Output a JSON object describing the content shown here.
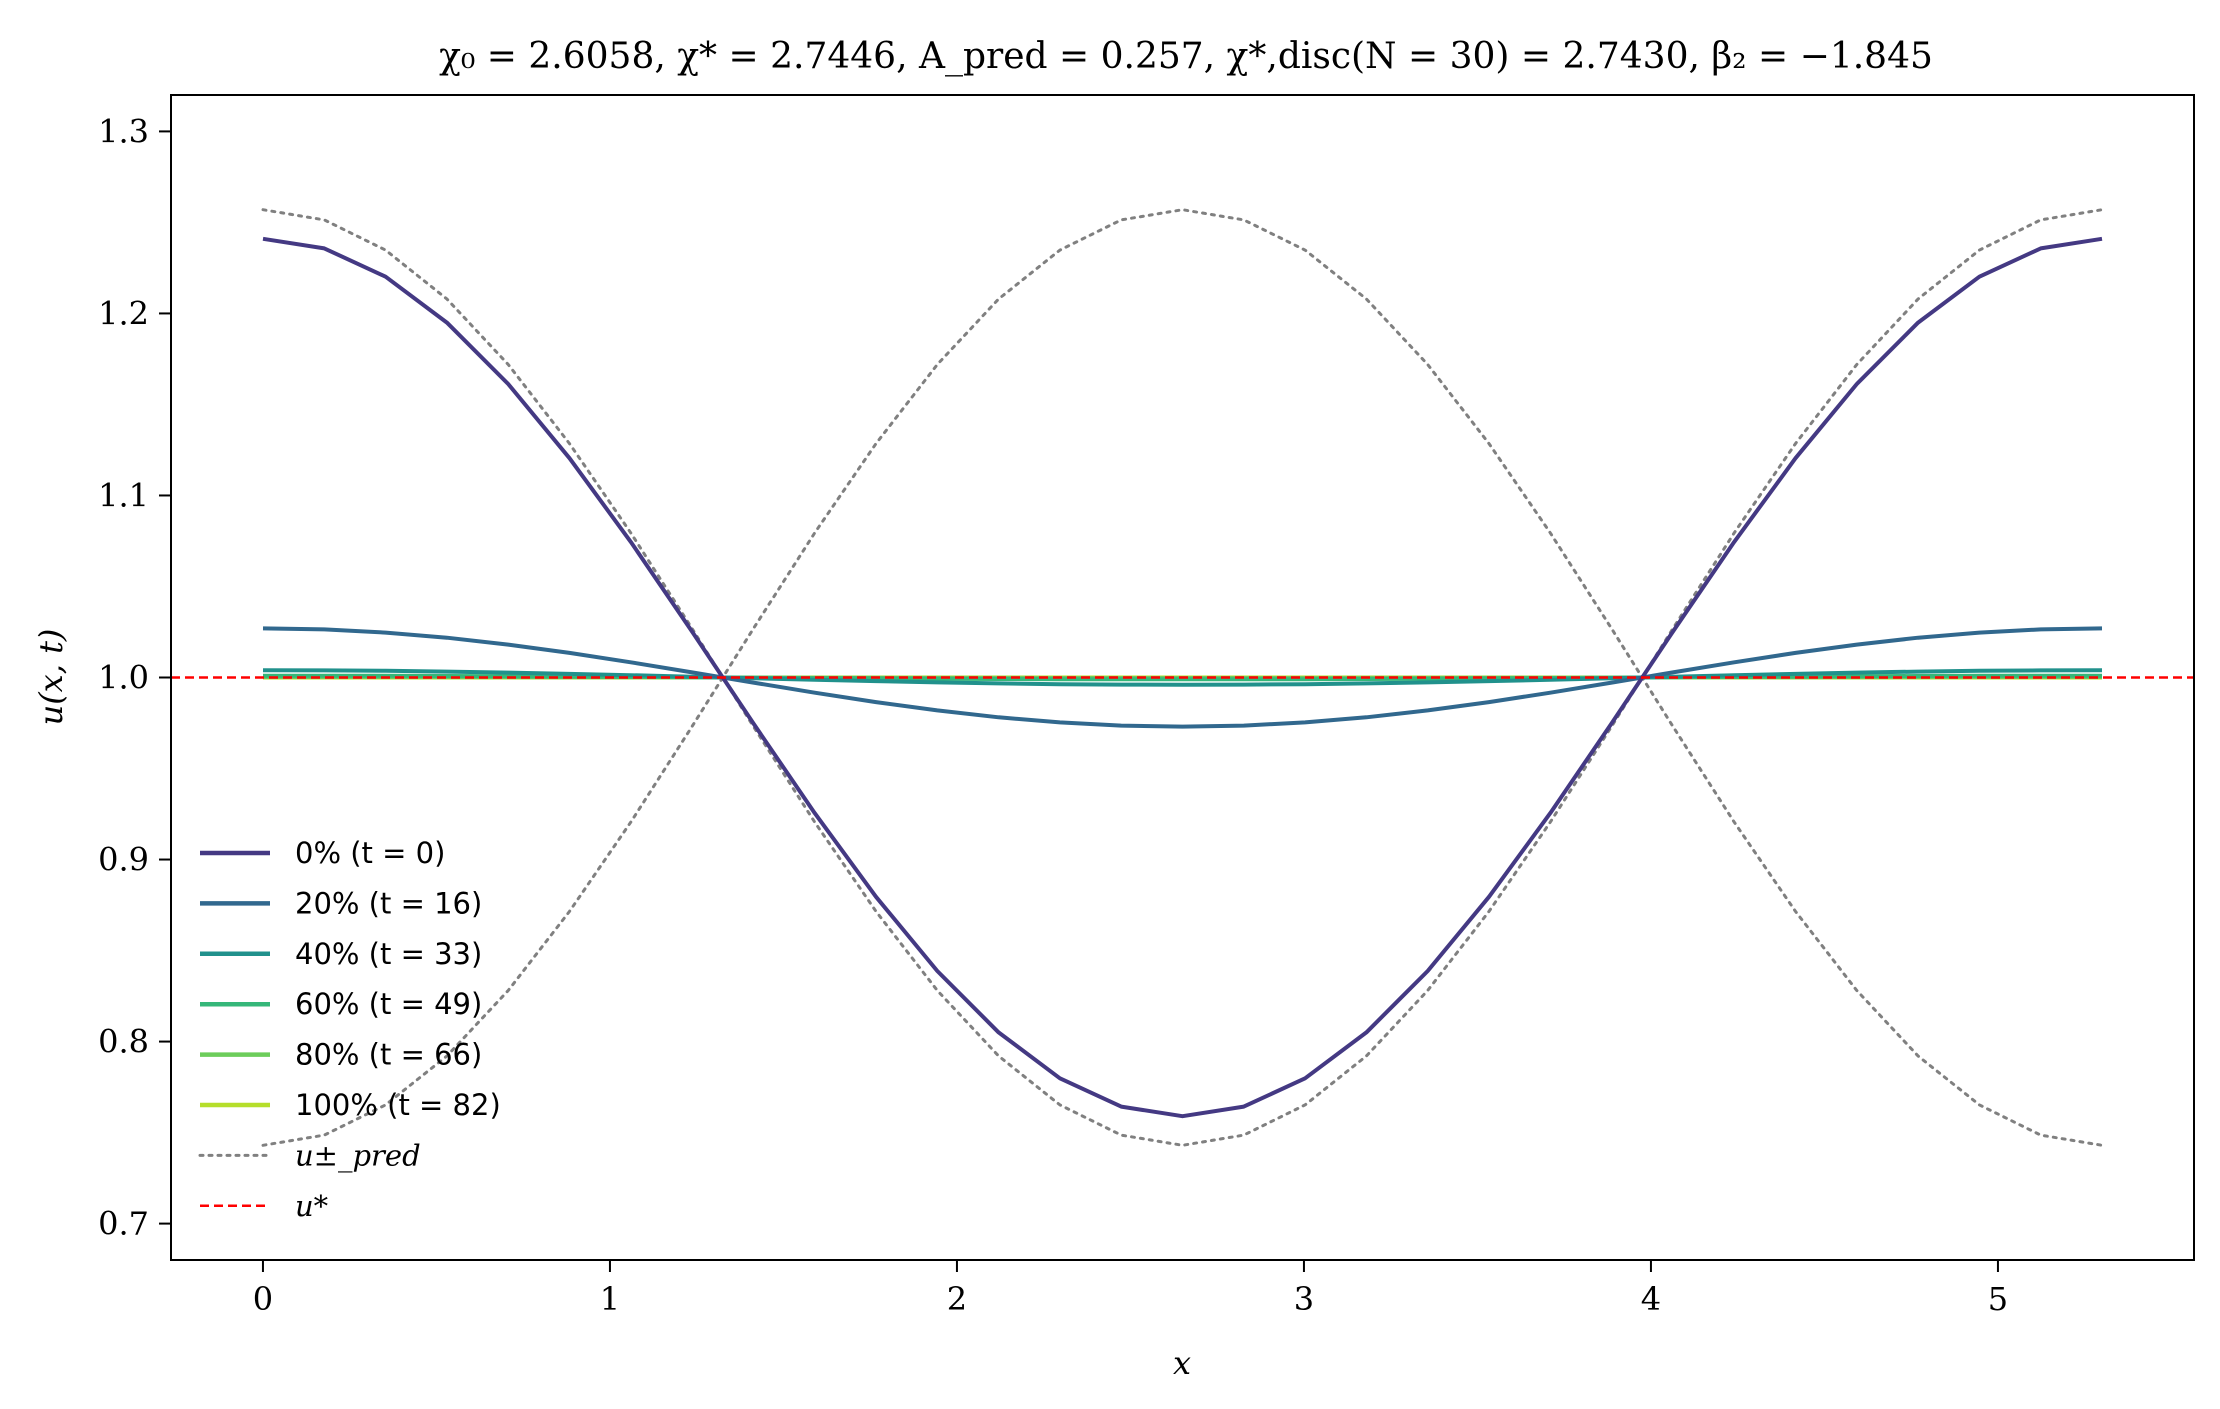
{
  "chart_data": {
    "type": "line",
    "title": "χ₀ = 2.6058,  χ* = 2.7446,  A_pred = 0.257,  χ*,disc(N = 30) = 2.7430,  β₂ = −1.845",
    "xlabel": "x",
    "ylabel": "u(x, t)",
    "xlim": [
      -0.265,
      5.565
    ],
    "ylim": [
      0.68,
      1.32
    ],
    "xticks": [
      0,
      1,
      2,
      3,
      4,
      5
    ],
    "xtick_labels": [
      "0",
      "1",
      "2",
      "3",
      "4",
      "5"
    ],
    "yticks": [
      0.7,
      0.8,
      0.9,
      1.0,
      1.1,
      1.2,
      1.3
    ],
    "ytick_labels": [
      "0.7",
      "0.8",
      "0.9",
      "1.0",
      "1.1",
      "1.2",
      "1.3"
    ],
    "grid": false,
    "legend_position": "lower-left",
    "x_domain": [
      0,
      5.3
    ],
    "n_points": 31,
    "series": [
      {
        "name": "0% (t = 0)",
        "amplitude": 0.241,
        "color": "#443983"
      },
      {
        "name": "20% (t = 16)",
        "amplitude": 0.027,
        "color": "#31688e"
      },
      {
        "name": "40% (t = 33)",
        "amplitude": 0.004,
        "color": "#21918c"
      },
      {
        "name": "60% (t = 49)",
        "amplitude": 0.001,
        "color": "#35b779"
      },
      {
        "name": "80% (t = 66)",
        "amplitude": 0.0003,
        "color": "#6ccd5a"
      },
      {
        "name": "100% (t = 82)",
        "amplitude": 0.0,
        "color": "#b5de2b"
      }
    ],
    "envelope": {
      "name": "u±_pred",
      "amplitude": 0.257,
      "color": "#808080"
    },
    "reference": {
      "name": "u*",
      "value": 1.0,
      "color": "#ff0000"
    }
  }
}
